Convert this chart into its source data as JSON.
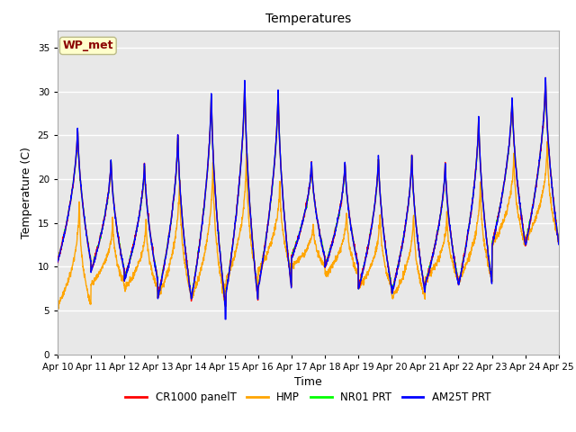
{
  "title": "Temperatures",
  "xlabel": "Time",
  "ylabel": "Temperature (C)",
  "ylim": [
    0,
    37
  ],
  "yticks": [
    0,
    5,
    10,
    15,
    20,
    25,
    30,
    35
  ],
  "x_labels": [
    "Apr 10",
    "Apr 11",
    "Apr 12",
    "Apr 13",
    "Apr 14",
    "Apr 15",
    "Apr 16",
    "Apr 17",
    "Apr 18",
    "Apr 19",
    "Apr 20",
    "Apr 21",
    "Apr 22",
    "Apr 23",
    "Apr 24",
    "Apr 25"
  ],
  "legend_labels": [
    "CR1000 panelT",
    "HMP",
    "NR01 PRT",
    "AM25T PRT"
  ],
  "legend_colors": [
    "red",
    "orange",
    "lime",
    "blue"
  ],
  "annotation_text": "WP_met",
  "annotation_color": "#8B0000",
  "annotation_bg": "#FFFFCC",
  "bg_color": "#E8E8E8",
  "series_colors": [
    "red",
    "orange",
    "lime",
    "blue"
  ],
  "linewidth": 1.0,
  "n_days": 15,
  "samples_per_day": 144,
  "day_maxes_cr": [
    26.5,
    22.8,
    22.5,
    26.0,
    31.0,
    32.5,
    31.2,
    22.5,
    22.5,
    23.3,
    23.5,
    22.5,
    28.0,
    30.2,
    32.5
  ],
  "day_mins_cr": [
    10.5,
    9.5,
    8.5,
    6.5,
    6.3,
    6.0,
    7.5,
    11.0,
    10.0,
    7.5,
    7.0,
    8.0,
    8.0,
    12.5,
    12.5
  ],
  "day_maxes_hmp": [
    20.0,
    17.0,
    17.0,
    23.0,
    25.5,
    26.0,
    22.0,
    16.0,
    18.0,
    18.0,
    18.0,
    17.5,
    22.0,
    25.0,
    26.5
  ],
  "day_mins_hmp": [
    5.5,
    8.0,
    7.5,
    6.5,
    6.3,
    8.0,
    9.5,
    10.0,
    9.0,
    7.5,
    6.5,
    8.5,
    8.5,
    12.5,
    13.0
  ],
  "figsize": [
    6.4,
    4.8
  ],
  "dpi": 100
}
